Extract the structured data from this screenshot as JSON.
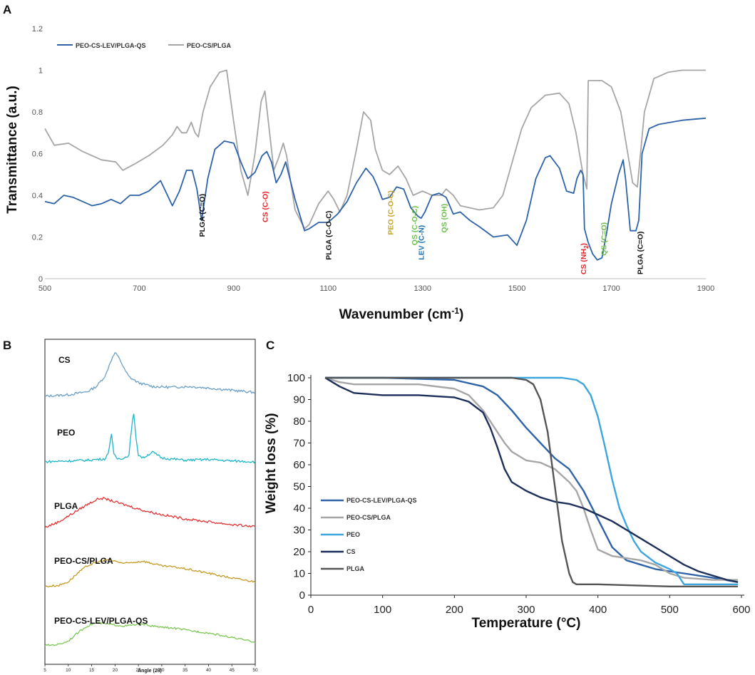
{
  "figure": {
    "panel_labels": [
      "A",
      "B",
      "C"
    ]
  },
  "chart_data": [
    {
      "id": "A",
      "type": "line",
      "title": "",
      "xlabel_main": "Wavenumber (cm",
      "xlabel_sup": "-1",
      "xlabel_end": ")",
      "ylabel": "Transmittance (a.u.)",
      "xlim": [
        500,
        1900
      ],
      "ylim": [
        0,
        1.2
      ],
      "xticks": [
        500,
        700,
        900,
        1100,
        1300,
        1500,
        1700,
        1900
      ],
      "yticks": [
        0,
        0.2,
        0.4,
        0.6,
        0.8,
        1,
        1.2
      ],
      "ytick_labels": [
        "0",
        "0.2",
        "0.4",
        "0.6",
        "0.8",
        "1",
        "1.2"
      ],
      "legend_position": "top-left",
      "series": [
        {
          "name": "PEO-CS-LEV/PLGA-QS",
          "color": "#2e63a8",
          "x": [
            500,
            520,
            540,
            560,
            600,
            620,
            640,
            660,
            680,
            700,
            720,
            745,
            770,
            785,
            800,
            812,
            822,
            832,
            845,
            860,
            880,
            900,
            915,
            930,
            945,
            960,
            970,
            980,
            990,
            1000,
            1010,
            1030,
            1050,
            1060,
            1080,
            1100,
            1120,
            1140,
            1160,
            1180,
            1195,
            1205,
            1215,
            1230,
            1245,
            1260,
            1275,
            1290,
            1297,
            1305,
            1320,
            1335,
            1350,
            1365,
            1380,
            1400,
            1420,
            1450,
            1480,
            1500,
            1520,
            1540,
            1560,
            1570,
            1590,
            1605,
            1620,
            1627,
            1635,
            1640,
            1643,
            1650,
            1660,
            1670,
            1680,
            1690,
            1700,
            1715,
            1725,
            1730,
            1740,
            1752,
            1758,
            1765,
            1780,
            1800,
            1850,
            1900
          ],
          "y": [
            0.37,
            0.36,
            0.4,
            0.39,
            0.35,
            0.36,
            0.38,
            0.36,
            0.4,
            0.4,
            0.42,
            0.47,
            0.35,
            0.42,
            0.52,
            0.52,
            0.43,
            0.28,
            0.48,
            0.62,
            0.66,
            0.65,
            0.56,
            0.48,
            0.51,
            0.59,
            0.61,
            0.56,
            0.46,
            0.5,
            0.56,
            0.38,
            0.23,
            0.24,
            0.27,
            0.27,
            0.31,
            0.37,
            0.46,
            0.53,
            0.49,
            0.44,
            0.38,
            0.39,
            0.44,
            0.43,
            0.34,
            0.3,
            0.29,
            0.32,
            0.4,
            0.41,
            0.39,
            0.31,
            0.32,
            0.28,
            0.25,
            0.2,
            0.21,
            0.16,
            0.28,
            0.48,
            0.58,
            0.59,
            0.53,
            0.42,
            0.41,
            0.48,
            0.52,
            0.5,
            0.24,
            0.18,
            0.12,
            0.09,
            0.1,
            0.22,
            0.36,
            0.5,
            0.57,
            0.48,
            0.23,
            0.23,
            0.28,
            0.6,
            0.72,
            0.74,
            0.76,
            0.77
          ]
        },
        {
          "name": "PEO-CS/PLGA",
          "color": "#a6a6a6",
          "x": [
            500,
            520,
            550,
            580,
            620,
            650,
            665,
            690,
            720,
            750,
            770,
            780,
            790,
            800,
            810,
            818,
            825,
            835,
            850,
            870,
            885,
            900,
            915,
            930,
            945,
            958,
            966,
            975,
            985,
            995,
            1005,
            1012,
            1030,
            1050,
            1060,
            1080,
            1100,
            1112,
            1125,
            1140,
            1160,
            1175,
            1190,
            1200,
            1215,
            1230,
            1248,
            1265,
            1280,
            1300,
            1320,
            1340,
            1350,
            1365,
            1380,
            1400,
            1420,
            1450,
            1470,
            1490,
            1510,
            1530,
            1560,
            1590,
            1610,
            1625,
            1640,
            1648,
            1651,
            1660,
            1680,
            1700,
            1720,
            1745,
            1755,
            1770,
            1790,
            1820,
            1850,
            1900
          ],
          "y": [
            0.72,
            0.64,
            0.65,
            0.61,
            0.57,
            0.56,
            0.52,
            0.55,
            0.59,
            0.64,
            0.69,
            0.73,
            0.7,
            0.7,
            0.75,
            0.7,
            0.68,
            0.8,
            0.92,
            0.99,
            1.0,
            0.75,
            0.52,
            0.4,
            0.6,
            0.85,
            0.9,
            0.72,
            0.52,
            0.58,
            0.65,
            0.59,
            0.33,
            0.24,
            0.26,
            0.36,
            0.42,
            0.38,
            0.32,
            0.4,
            0.62,
            0.8,
            0.76,
            0.62,
            0.52,
            0.5,
            0.54,
            0.48,
            0.4,
            0.42,
            0.4,
            0.4,
            0.43,
            0.4,
            0.35,
            0.34,
            0.33,
            0.34,
            0.4,
            0.56,
            0.72,
            0.82,
            0.88,
            0.89,
            0.84,
            0.7,
            0.5,
            0.43,
            0.95,
            0.95,
            0.95,
            0.92,
            0.8,
            0.46,
            0.44,
            0.8,
            0.96,
            0.99,
            1.0,
            1.0
          ]
        }
      ],
      "annotations": [
        {
          "text": "PLGA (C=O)",
          "x": 832,
          "y": 0.2,
          "color": "#111111"
        },
        {
          "text": "CS (C-O)",
          "x": 966,
          "y": 0.27,
          "color": "#e8242a"
        },
        {
          "text": "PLGA (C-O-C)",
          "x": 1100,
          "y": 0.09,
          "color": "#111111"
        },
        {
          "text": "PEO (C-O-C)",
          "x": 1232,
          "y": 0.21,
          "color": "#c7a12c"
        },
        {
          "text": "QS (C-O-C)",
          "x": 1282,
          "y": 0.16,
          "color": "#6cbf4a"
        },
        {
          "text": "LEV (C-N)",
          "x": 1297,
          "y": 0.09,
          "color": "#1a73b8"
        },
        {
          "text": "QS (OH)",
          "x": 1345,
          "y": 0.22,
          "color": "#6cbf4a"
        },
        {
          "text": "CS (NH",
          "sub": "2",
          "end": ")",
          "x": 1640,
          "y": 0.02,
          "color": "#e8242a"
        },
        {
          "text": "QS (C=O)",
          "x": 1683,
          "y": 0.11,
          "color": "#6cbf4a"
        },
        {
          "text": "PLGA (C=O)",
          "x": 1760,
          "y": 0.02,
          "color": "#111111"
        }
      ]
    },
    {
      "id": "B",
      "type": "line",
      "title": "",
      "xlabel": "Angle (2θ)",
      "ylabel": "",
      "xlim": [
        5,
        50
      ],
      "xticks": [
        5,
        10,
        15,
        20,
        25,
        30,
        35,
        40,
        45,
        50
      ],
      "series": [
        {
          "name": "CS",
          "color": "#6a9fc8",
          "x": [
            5,
            10,
            14,
            16,
            18,
            19,
            20,
            21,
            22,
            23,
            25,
            28,
            32,
            36,
            40,
            45,
            50
          ],
          "y": [
            2,
            4,
            8,
            15,
            30,
            48,
            60,
            52,
            38,
            28,
            20,
            15,
            14,
            15,
            13,
            10,
            7
          ]
        },
        {
          "name": "PEO",
          "color": "#1db6c9",
          "x": [
            5,
            10,
            14,
            16,
            18,
            18.7,
            19.2,
            19.7,
            20.5,
            22,
            23,
            23.6,
            24,
            24.4,
            25,
            26,
            27,
            28,
            30,
            35,
            40,
            45,
            50
          ],
          "y": [
            5,
            6,
            7,
            8,
            9,
            20,
            45,
            15,
            9,
            10,
            14,
            55,
            68,
            42,
            14,
            10,
            14,
            18,
            10,
            7,
            8,
            6,
            5
          ]
        },
        {
          "name": "PLGA",
          "color": "#e03333",
          "x": [
            5,
            8,
            11,
            14,
            16,
            17,
            18,
            20,
            23,
            26,
            30,
            35,
            40,
            45,
            50
          ],
          "y": [
            8,
            16,
            28,
            40,
            47,
            49,
            48,
            44,
            38,
            32,
            26,
            20,
            16,
            12,
            9
          ]
        },
        {
          "name": "PEO-CS/PLGA",
          "color": "#c59a22",
          "x": [
            5,
            8,
            10,
            12,
            14,
            16,
            18,
            20,
            22,
            24,
            26,
            28,
            30,
            33,
            36,
            40,
            45,
            50
          ],
          "y": [
            6,
            8,
            14,
            28,
            40,
            46,
            50,
            48,
            44,
            46,
            48,
            44,
            40,
            38,
            34,
            28,
            20,
            14
          ]
        },
        {
          "name": "PEO-CS-LEV/PLGA-QS",
          "color": "#7dc755",
          "x": [
            5,
            8,
            10,
            12,
            14,
            16,
            18,
            20,
            22,
            24,
            26,
            28,
            30,
            33,
            36,
            40,
            45,
            50
          ],
          "y": [
            8,
            10,
            16,
            30,
            42,
            48,
            46,
            44,
            42,
            44,
            46,
            42,
            40,
            38,
            34,
            30,
            22,
            14
          ]
        }
      ]
    },
    {
      "id": "C",
      "type": "line",
      "title": "",
      "xlabel": "Temperature (°C)",
      "ylabel": "Weight loss (%)",
      "xlim": [
        0,
        600
      ],
      "ylim": [
        0,
        100
      ],
      "xticks": [
        0,
        100,
        200,
        300,
        400,
        500,
        600
      ],
      "yticks": [
        0,
        10,
        20,
        30,
        40,
        50,
        60,
        70,
        80,
        90,
        100
      ],
      "legend_position": "left",
      "series": [
        {
          "name": "PEO-CS-LEV/PLGA-QS",
          "color": "#2e63a8",
          "x": [
            20,
            100,
            200,
            240,
            260,
            280,
            300,
            320,
            340,
            360,
            380,
            400,
            420,
            440,
            460,
            480,
            500,
            520,
            560,
            595
          ],
          "y": [
            100,
            100,
            99,
            96,
            92,
            85,
            77,
            70,
            63,
            58,
            48,
            35,
            22,
            16,
            14,
            12,
            11,
            10,
            8,
            6
          ]
        },
        {
          "name": "PEO-CS/PLGA",
          "color": "#a6a6a6",
          "x": [
            20,
            40,
            60,
            100,
            150,
            200,
            220,
            240,
            250,
            260,
            270,
            280,
            300,
            320,
            340,
            360,
            370,
            380,
            390,
            400,
            420,
            440,
            460,
            480,
            490,
            500,
            520,
            560,
            595
          ],
          "y": [
            100,
            98,
            97,
            97,
            97,
            95,
            92,
            85,
            80,
            75,
            70,
            66,
            62,
            61,
            58,
            52,
            48,
            40,
            30,
            21,
            18,
            17,
            16,
            14,
            12,
            10,
            8,
            7,
            7
          ]
        },
        {
          "name": "PEO",
          "color": "#3fa5dd",
          "x": [
            20,
            100,
            200,
            300,
            350,
            370,
            380,
            390,
            400,
            410,
            420,
            430,
            440,
            450,
            460,
            480,
            500,
            510,
            520,
            560,
            595
          ],
          "y": [
            100,
            100,
            100,
            100,
            100,
            99,
            97,
            92,
            82,
            68,
            53,
            40,
            32,
            25,
            20,
            15,
            12,
            10,
            5,
            5,
            5
          ]
        },
        {
          "name": "CS",
          "color": "#1c2f5a",
          "x": [
            20,
            40,
            60,
            100,
            150,
            200,
            220,
            240,
            250,
            260,
            270,
            280,
            300,
            320,
            340,
            360,
            380,
            400,
            420,
            440,
            460,
            480,
            500,
            520,
            540,
            560,
            580,
            595
          ],
          "y": [
            100,
            96,
            93,
            92,
            92,
            91,
            89,
            84,
            77,
            68,
            58,
            52,
            48,
            45,
            43,
            42,
            40,
            37,
            34,
            30,
            26,
            22,
            18,
            14,
            11,
            9,
            7,
            6
          ]
        },
        {
          "name": "PLGA",
          "color": "#555555",
          "x": [
            20,
            100,
            200,
            280,
            300,
            310,
            320,
            330,
            340,
            350,
            360,
            365,
            370,
            400,
            450,
            500,
            550,
            595
          ],
          "y": [
            100,
            100,
            100,
            100,
            99,
            97,
            90,
            75,
            50,
            25,
            10,
            6,
            5,
            5,
            4.5,
            4,
            4,
            4
          ]
        }
      ]
    }
  ]
}
